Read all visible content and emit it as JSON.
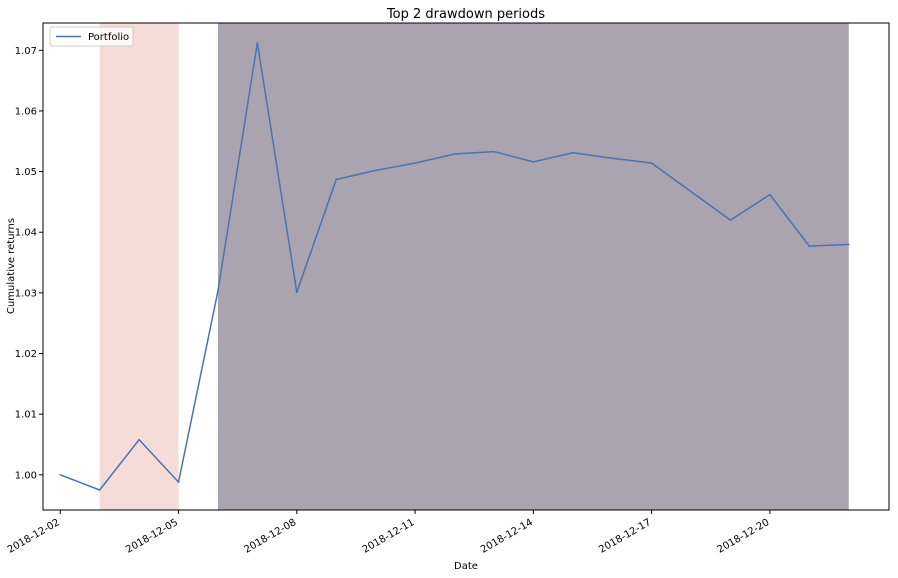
{
  "chart_data": {
    "type": "line",
    "title": "Top 2 drawdown periods",
    "xlabel": "Date",
    "ylabel": "Cumulative returns",
    "legend_position": "top-left",
    "grid": false,
    "x_tick_labels": [
      "2018-12-02",
      "2018-12-05",
      "2018-12-08",
      "2018-12-11",
      "2018-12-14",
      "2018-12-17",
      "2018-12-20"
    ],
    "y_tick_labels": [
      "1.00",
      "1.01",
      "1.02",
      "1.03",
      "1.04",
      "1.05",
      "1.06",
      "1.07"
    ],
    "xlim": [
      "2018-12-01T13:30",
      "2018-12-23T00:30"
    ],
    "ylim": [
      0.9942,
      1.0745
    ],
    "series": [
      {
        "name": "Portfolio",
        "color": "#4c72b0",
        "x": [
          "2018-12-02",
          "2018-12-03",
          "2018-12-04",
          "2018-12-05",
          "2018-12-06",
          "2018-12-07",
          "2018-12-08",
          "2018-12-09",
          "2018-12-10",
          "2018-12-11",
          "2018-12-12",
          "2018-12-13",
          "2018-12-14",
          "2018-12-15",
          "2018-12-16",
          "2018-12-17",
          "2018-12-18",
          "2018-12-19",
          "2018-12-20",
          "2018-12-21",
          "2018-12-22"
        ],
        "values": [
          1.0,
          0.9975,
          1.0058,
          0.9988,
          1.0303,
          1.0712,
          1.0301,
          1.0487,
          1.0502,
          1.0514,
          1.0529,
          1.0533,
          1.0516,
          1.0531,
          1.0522,
          1.0514,
          1.0467,
          1.042,
          1.0462,
          1.0377,
          1.038
        ]
      }
    ],
    "shaded_periods": [
      {
        "start": "2018-12-03",
        "end": "2018-12-05",
        "color": "#f5dcd8"
      },
      {
        "start": "2018-12-06",
        "end": "2018-12-22",
        "color": "#aaa4b0"
      }
    ]
  }
}
